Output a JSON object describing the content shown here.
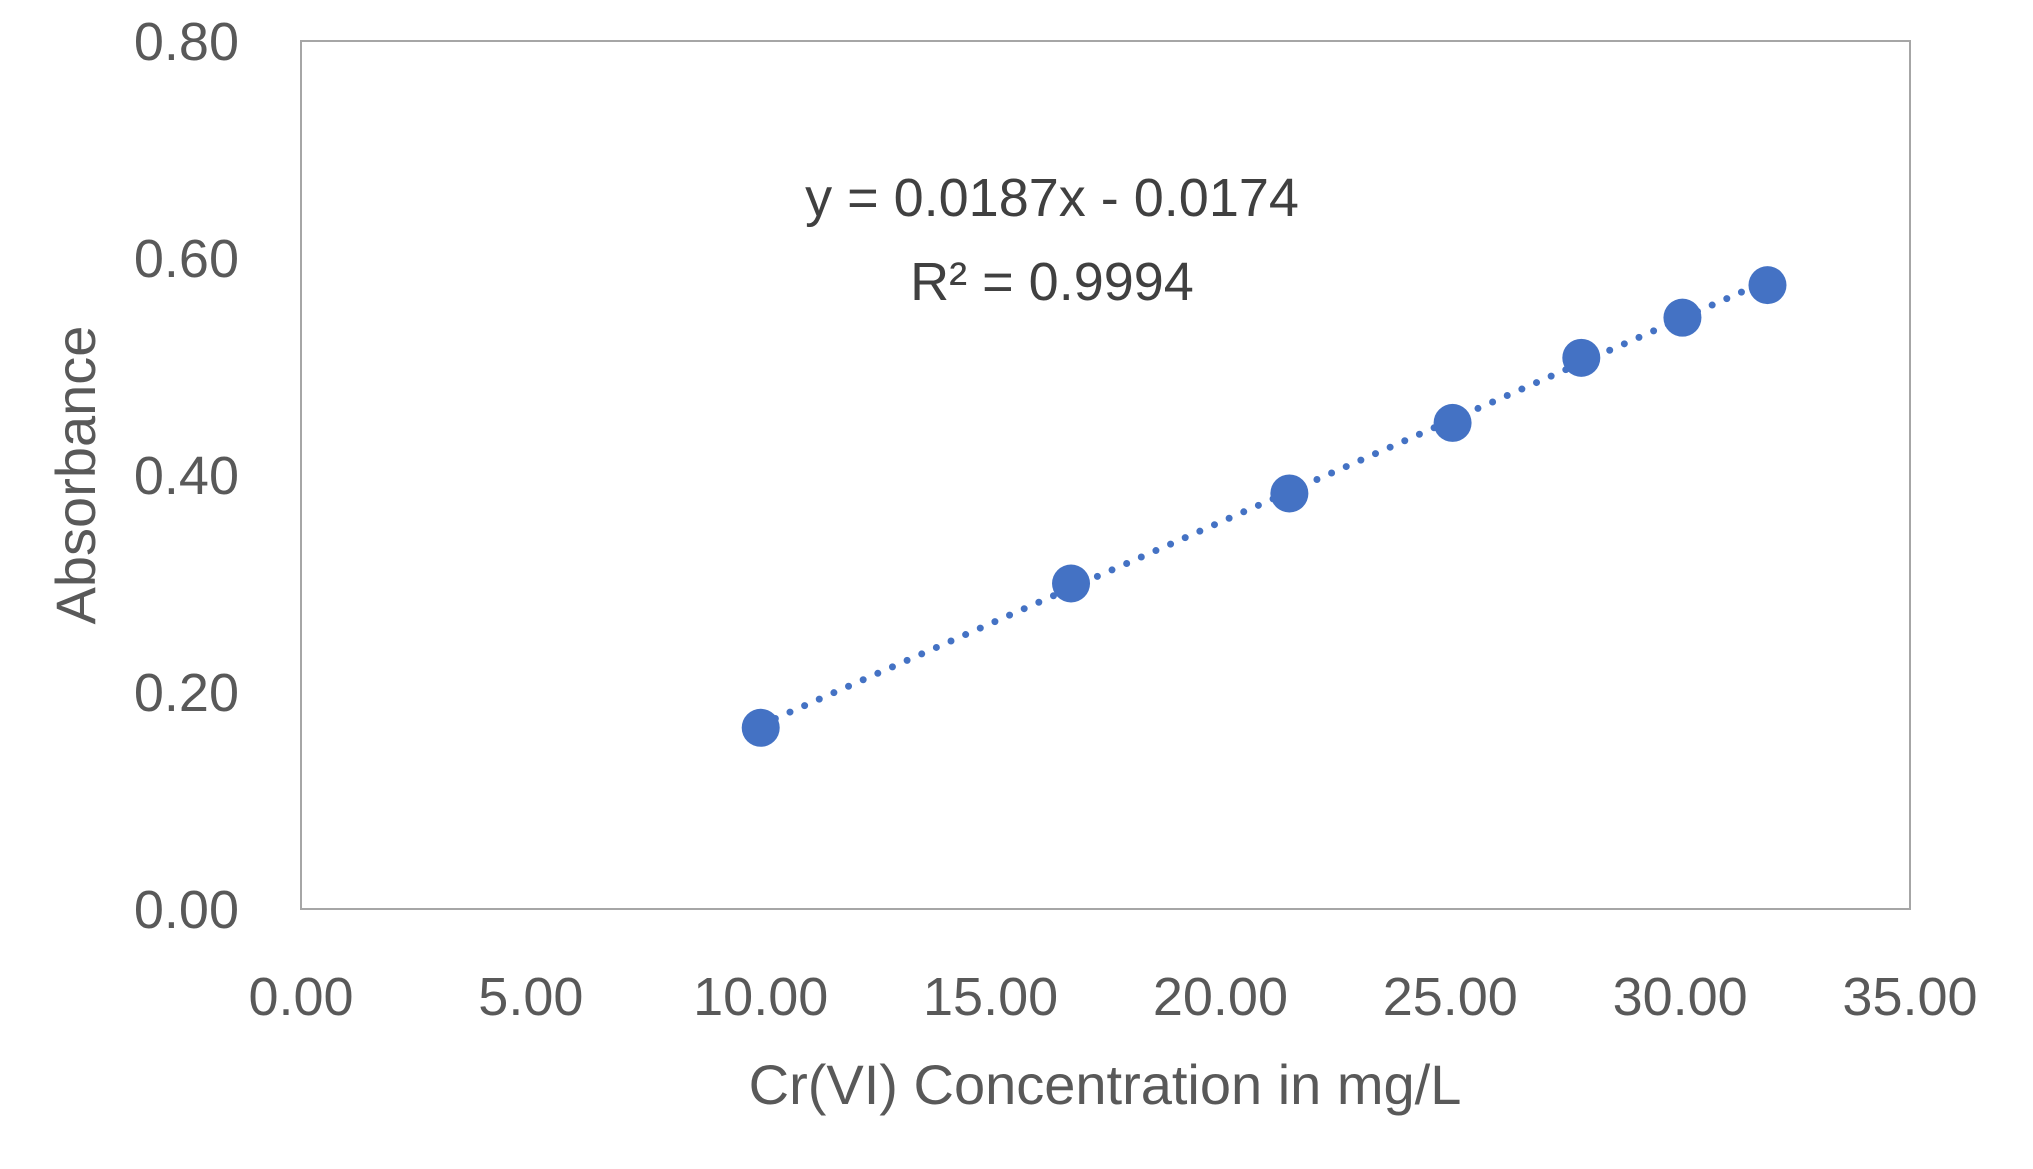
{
  "chart_data": {
    "type": "scatter",
    "title": "",
    "xlabel": "Cr(VI) Concentration in mg/L",
    "ylabel": "Absorbance",
    "xlim": [
      0,
      35
    ],
    "ylim": [
      0,
      0.8
    ],
    "x_ticks": [
      "0.00",
      "5.00",
      "10.00",
      "15.00",
      "20.00",
      "25.00",
      "30.00",
      "35.00"
    ],
    "y_ticks": [
      "0.00",
      "0.20",
      "0.40",
      "0.60",
      "0.80"
    ],
    "grid": false,
    "series": [
      {
        "x": [
          10.0,
          16.75,
          21.5,
          25.05,
          27.85,
          30.05,
          31.9
        ],
        "y": [
          0.167,
          0.3,
          0.383,
          0.448,
          0.508,
          0.545,
          0.575
        ],
        "color": "#4472C4"
      }
    ],
    "trendline": {
      "slope": 0.0187,
      "intercept": -0.0174,
      "x_range": [
        10.0,
        31.9
      ],
      "style": "dotted",
      "color": "#4472C4"
    },
    "annotations": [
      "y = 0.0187x - 0.0174",
      "R² = 0.9994"
    ]
  }
}
